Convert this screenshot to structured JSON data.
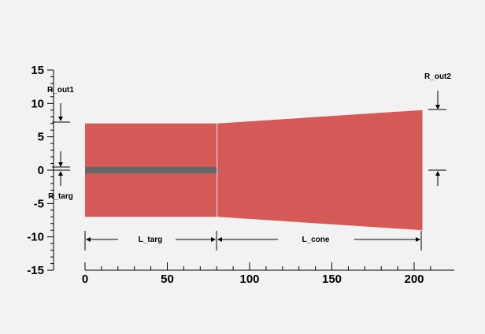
{
  "colors": {
    "background": "#f2f2f2",
    "body_fill": "#d55a57",
    "target_core": "#666666",
    "axis": "#000000"
  },
  "chart_data": {
    "type": "diagram",
    "x_axis": {
      "range": [
        0,
        210
      ],
      "ticks": [
        0,
        50,
        100,
        150,
        200
      ],
      "tick_labels": [
        "0",
        "50",
        "100",
        "150",
        "200"
      ]
    },
    "y_axis": {
      "range": [
        -15,
        15
      ],
      "ticks": [
        -15,
        -10,
        -5,
        0,
        5,
        10,
        15
      ],
      "tick_labels": [
        "-15",
        "-10",
        "-5",
        "0",
        "5",
        "10",
        "15"
      ]
    },
    "shapes": {
      "target_section": {
        "x_start": 0,
        "x_end": 80,
        "half_height": 7
      },
      "cone_section": {
        "x_start": 80,
        "x_end": 205,
        "half_height_start": 7,
        "half_height_end": 9
      },
      "target_core": {
        "x_start": 0,
        "x_end": 80,
        "half_height": 0.5
      }
    },
    "dimension_labels": {
      "r_out1": "R_out1",
      "r_targ": "R_targ",
      "r_out2": "R_out2",
      "l_targ": "L_targ",
      "l_cone": "L_cone"
    }
  }
}
